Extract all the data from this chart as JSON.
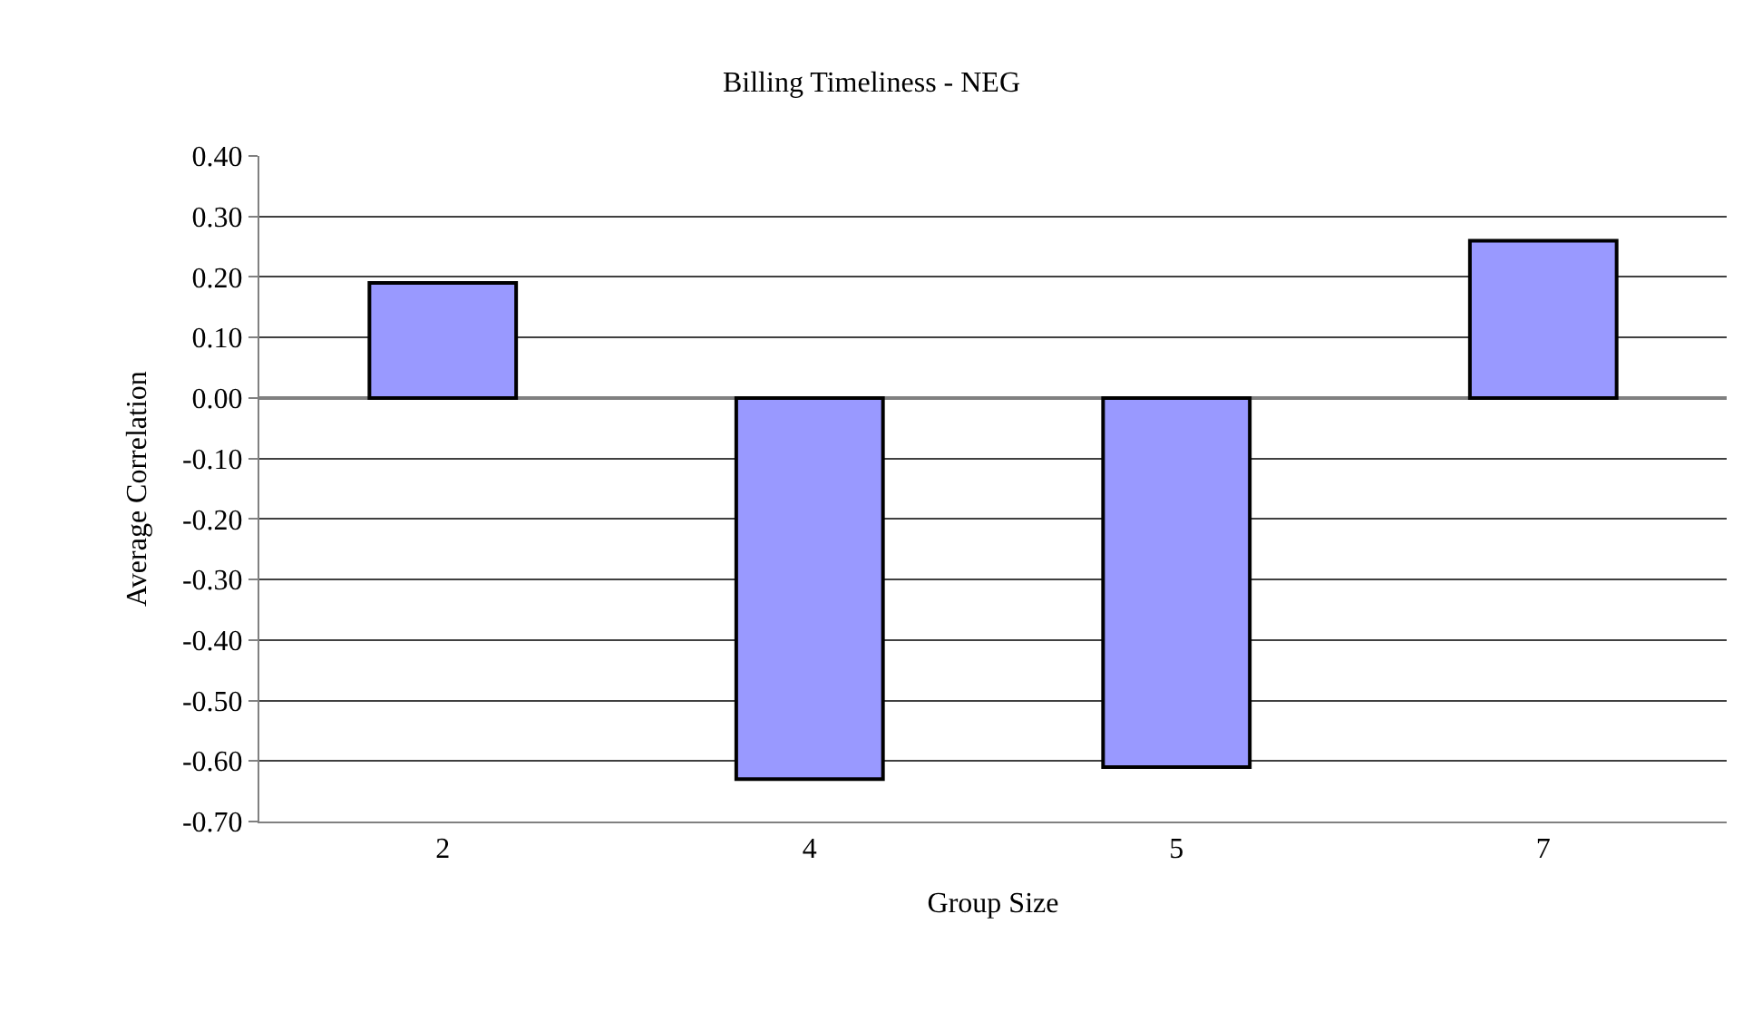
{
  "chart_data": {
    "type": "bar",
    "title": "Billing Timeliness - NEG",
    "xlabel": "Group Size",
    "ylabel": "Average Correlation",
    "categories": [
      "2",
      "4",
      "5",
      "7"
    ],
    "series": [
      {
        "color": "#9999ff",
        "values": [
          0.19,
          -0.63,
          -0.61,
          0.26
        ]
      }
    ],
    "ylim": [
      -0.7,
      0.4
    ],
    "yticks": [
      {
        "value": 0.4,
        "label": "0.40"
      },
      {
        "value": 0.3,
        "label": "0.30"
      },
      {
        "value": 0.2,
        "label": "0.20"
      },
      {
        "value": 0.1,
        "label": "0.10"
      },
      {
        "value": 0,
        "label": "0.00"
      },
      {
        "value": -0.1,
        "label": "-0.10"
      },
      {
        "value": -0.2,
        "label": "-0.20"
      },
      {
        "value": -0.3,
        "label": "-0.30"
      },
      {
        "value": -0.4,
        "label": "-0.40"
      },
      {
        "value": -0.5,
        "label": "-0.50"
      },
      {
        "value": -0.6,
        "label": "-0.60"
      },
      {
        "value": -0.7,
        "label": "-0.70"
      }
    ],
    "grid": "y",
    "legend": false
  }
}
